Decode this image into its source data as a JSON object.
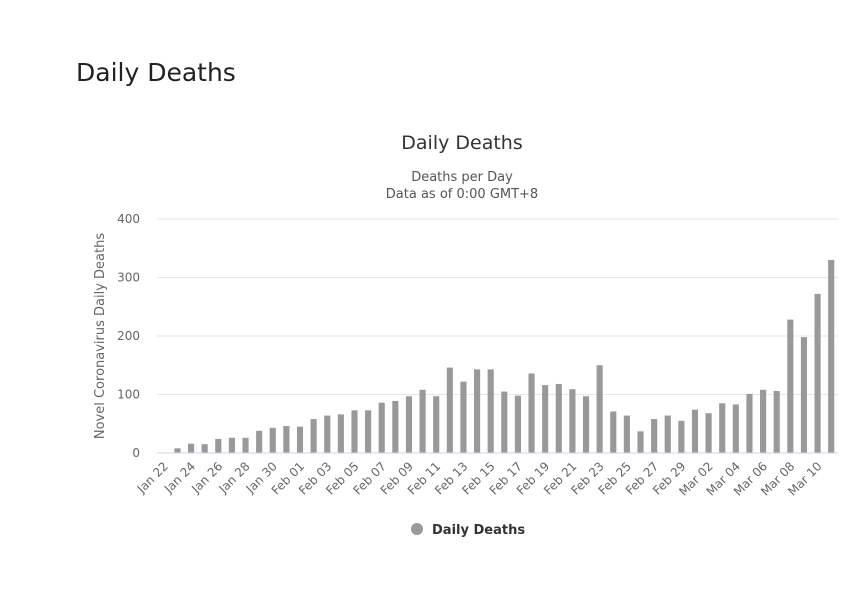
{
  "page": {
    "heading": "Daily Deaths"
  },
  "chart_data": {
    "type": "bar",
    "title": "Daily Deaths",
    "subtitle": [
      "Deaths per Day",
      "Data as of 0:00 GMT+8"
    ],
    "xlabel": "",
    "ylabel": "Novel Coronavirus Daily Deaths",
    "ylim": [
      0,
      400
    ],
    "yticks": [
      0,
      100,
      200,
      300,
      400
    ],
    "grid": true,
    "legend_position": "bottom-center",
    "color": "#999999",
    "categories": [
      "Jan 22",
      "Jan 23",
      "Jan 24",
      "Jan 25",
      "Jan 26",
      "Jan 27",
      "Jan 28",
      "Jan 29",
      "Jan 30",
      "Jan 31",
      "Feb 01",
      "Feb 02",
      "Feb 03",
      "Feb 04",
      "Feb 05",
      "Feb 06",
      "Feb 07",
      "Feb 08",
      "Feb 09",
      "Feb 10",
      "Feb 11",
      "Feb 12",
      "Feb 13",
      "Feb 14",
      "Feb 15",
      "Feb 16",
      "Feb 17",
      "Feb 18",
      "Feb 19",
      "Feb 20",
      "Feb 21",
      "Feb 22",
      "Feb 23",
      "Feb 24",
      "Feb 25",
      "Feb 26",
      "Feb 27",
      "Feb 28",
      "Feb 29",
      "Mar 01",
      "Mar 02",
      "Mar 03",
      "Mar 04",
      "Mar 05",
      "Mar 06",
      "Mar 07",
      "Mar 08",
      "Mar 09",
      "Mar 10",
      "Mar 11"
    ],
    "tick_labels": [
      "Jan 22",
      "Jan 24",
      "Jan 26",
      "Jan 28",
      "Jan 30",
      "Feb 01",
      "Feb 03",
      "Feb 05",
      "Feb 07",
      "Feb 09",
      "Feb 11",
      "Feb 13",
      "Feb 15",
      "Feb 17",
      "Feb 19",
      "Feb 21",
      "Feb 23",
      "Feb 25",
      "Feb 27",
      "Feb 29",
      "Mar 02",
      "Mar 04",
      "Mar 06",
      "Mar 08",
      "Mar 10"
    ],
    "series": [
      {
        "name": "Daily Deaths",
        "values": [
          0,
          8,
          16,
          15,
          24,
          26,
          26,
          38,
          43,
          46,
          45,
          58,
          64,
          66,
          73,
          73,
          86,
          89,
          97,
          108,
          97,
          146,
          122,
          143,
          143,
          105,
          98,
          136,
          116,
          118,
          109,
          97,
          150,
          71,
          64,
          37,
          58,
          64,
          55,
          74,
          68,
          85,
          83,
          101,
          108,
          106,
          228,
          198,
          272,
          330
        ]
      }
    ]
  }
}
